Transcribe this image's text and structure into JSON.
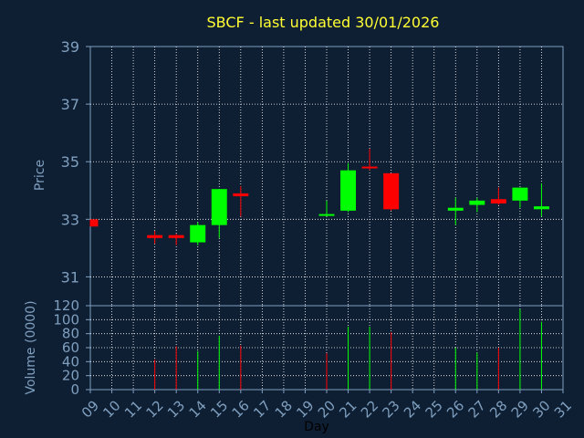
{
  "title": "SBCF - last updated 30/01/2026",
  "colors": {
    "background": "#0f1f33",
    "title": "#ffff33",
    "axis_text": "#7f9fbf",
    "grid": "#ffffff",
    "up": "#00ff00",
    "down": "#ff0000"
  },
  "chart_data": [
    {
      "type": "candlestick",
      "ylabel": "Price",
      "ylim": [
        30,
        39
      ],
      "yticks": [
        31,
        33,
        35,
        37,
        39
      ],
      "xlim": [
        9,
        31
      ],
      "grid": true,
      "days": [
        9,
        12,
        13,
        14,
        15,
        16,
        20,
        21,
        22,
        23,
        26,
        27,
        28,
        29,
        30
      ],
      "open": [
        33.0,
        32.45,
        32.45,
        32.2,
        32.8,
        33.9,
        33.15,
        33.3,
        34.8,
        34.6,
        33.3,
        33.5,
        33.7,
        33.65,
        33.35
      ],
      "close": [
        32.75,
        32.35,
        32.35,
        32.8,
        34.05,
        33.8,
        33.15,
        34.7,
        34.75,
        33.35,
        33.4,
        33.65,
        33.55,
        34.1,
        33.45
      ],
      "high": [
        33.0,
        32.6,
        32.5,
        32.9,
        34.05,
        34.15,
        33.65,
        34.95,
        35.45,
        34.6,
        33.75,
        33.75,
        34.1,
        34.1,
        34.25
      ],
      "low": [
        32.75,
        32.15,
        32.1,
        32.1,
        32.35,
        33.1,
        33.1,
        33.25,
        34.7,
        33.3,
        32.8,
        33.25,
        33.5,
        33.4,
        33.1
      ]
    },
    {
      "type": "bar",
      "xlabel": "Day",
      "ylabel": "Volume (0000)",
      "ylim": [
        0,
        120
      ],
      "yticks": [
        0,
        20,
        40,
        60,
        80,
        100,
        120
      ],
      "xticks": [
        "09",
        "10",
        "11",
        "12",
        "13",
        "14",
        "15",
        "16",
        "17",
        "18",
        "19",
        "20",
        "21",
        "22",
        "23",
        "24",
        "25",
        "26",
        "27",
        "28",
        "29",
        "30",
        "31"
      ],
      "grid": true,
      "days": [
        9,
        12,
        13,
        14,
        15,
        16,
        20,
        21,
        22,
        23,
        26,
        27,
        28,
        29,
        30
      ],
      "values": [
        0,
        43,
        62,
        55,
        77,
        63,
        52,
        90,
        90,
        82,
        60,
        53,
        60,
        115,
        97
      ],
      "direction": [
        "down",
        "down",
        "down",
        "up",
        "up",
        "down",
        "down",
        "up",
        "up",
        "down",
        "up",
        "up",
        "down",
        "up",
        "up"
      ]
    }
  ]
}
